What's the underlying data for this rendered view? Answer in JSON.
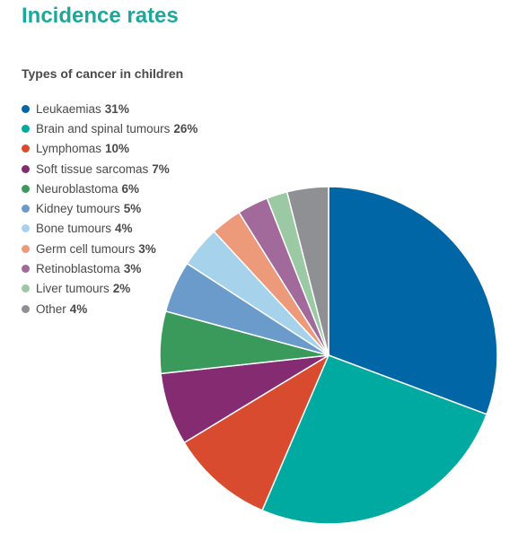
{
  "title": "Incidence rates",
  "chart_data": {
    "type": "pie",
    "title": "Types of cancer in children",
    "legend_position": "left",
    "start_angle": "12 o'clock",
    "direction": "clockwise",
    "slices": [
      {
        "label": "Leukaemias",
        "value": 31,
        "display": "31%",
        "color": "#0066a5"
      },
      {
        "label": "Brain and spinal tumours",
        "value": 26,
        "display": "26%",
        "color": "#00aaa0"
      },
      {
        "label": "Lymphomas",
        "value": 10,
        "display": "10%",
        "color": "#d94b2e"
      },
      {
        "label": "Soft tissue sarcomas",
        "value": 7,
        "display": "7%",
        "color": "#842b72"
      },
      {
        "label": "Neuroblastoma",
        "value": 6,
        "display": "6%",
        "color": "#3a9a5c"
      },
      {
        "label": "Kidney tumours",
        "value": 5,
        "display": "5%",
        "color": "#6a9bcb"
      },
      {
        "label": "Bone tumours",
        "value": 4,
        "display": "4%",
        "color": "#a6d2ec"
      },
      {
        "label": "Germ cell tumours",
        "value": 3,
        "display": "3%",
        "color": "#ec9a7a"
      },
      {
        "label": "Retinoblastoma",
        "value": 3,
        "display": "3%",
        "color": "#a26a9a"
      },
      {
        "label": "Liver tumours",
        "value": 2,
        "display": "2%",
        "color": "#9bc9a4"
      },
      {
        "label": "Other",
        "value": 4,
        "display": "4%",
        "color": "#8e9093"
      }
    ]
  }
}
